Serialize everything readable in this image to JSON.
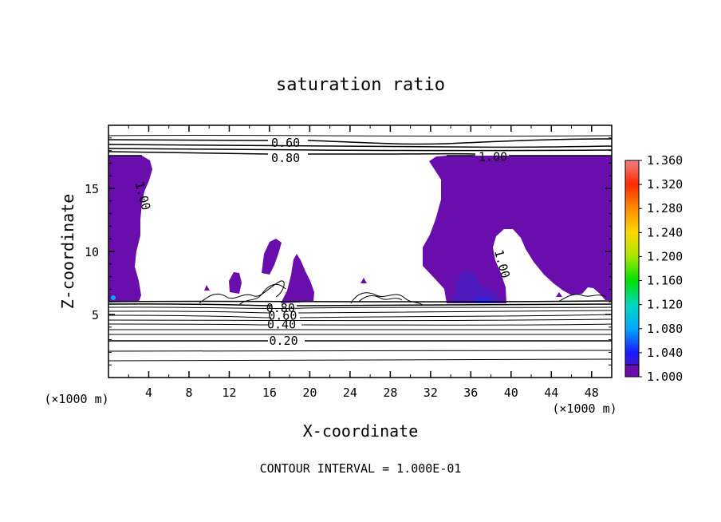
{
  "chart_data": {
    "type": "heatmap",
    "title": "saturation ratio",
    "xlabel": "X-coordinate",
    "ylabel": "Z-coordinate",
    "x_unit_label": "(×1000 m)",
    "z_unit_label": "(×1000 m)",
    "footer": "CONTOUR INTERVAL = 1.000E-01",
    "xlim": [
      0,
      50
    ],
    "ylim": [
      0,
      20
    ],
    "x_ticks": [
      "4",
      "8",
      "12",
      "16",
      "20",
      "24",
      "28",
      "32",
      "36",
      "40",
      "44",
      "48"
    ],
    "x_tick_values": [
      4,
      8,
      12,
      16,
      20,
      24,
      28,
      32,
      36,
      40,
      44,
      48
    ],
    "y_ticks": [
      "5",
      "10",
      "15"
    ],
    "y_tick_values": [
      5,
      10,
      15
    ],
    "contour_labels": [
      {
        "text": "0.60",
        "x": 17.6,
        "z": 18.6
      },
      {
        "text": "0.80",
        "x": 17.6,
        "z": 17.4
      },
      {
        "text": "1.00",
        "x": 38.2,
        "z": 17.5
      },
      {
        "text": "1.00",
        "x": 3.4,
        "z": 14.4
      },
      {
        "text": "1.00",
        "x": 39.1,
        "z": 9.0
      },
      {
        "text": "0.80",
        "x": 17.1,
        "z": 5.5
      },
      {
        "text": "0.60",
        "x": 17.3,
        "z": 4.9
      },
      {
        "text": "0.40",
        "x": 17.2,
        "z": 4.2
      },
      {
        "text": "0.20",
        "x": 17.4,
        "z": 2.9
      }
    ],
    "colorbar": {
      "labels": [
        "1.360",
        "1.320",
        "1.280",
        "1.240",
        "1.200",
        "1.160",
        "1.120",
        "1.080",
        "1.040",
        "1.000"
      ],
      "values": [
        1.36,
        1.32,
        1.28,
        1.24,
        1.2,
        1.16,
        1.12,
        1.08,
        1.04,
        1.0
      ],
      "colors": [
        "#f08080",
        "#ff2a00",
        "#ff8c00",
        "#ffd700",
        "#a8e600",
        "#00e000",
        "#00d8c0",
        "#00a8ff",
        "#1a1aff",
        "#6a0dad"
      ]
    },
    "filled_region_color": "#6a0dad"
  }
}
